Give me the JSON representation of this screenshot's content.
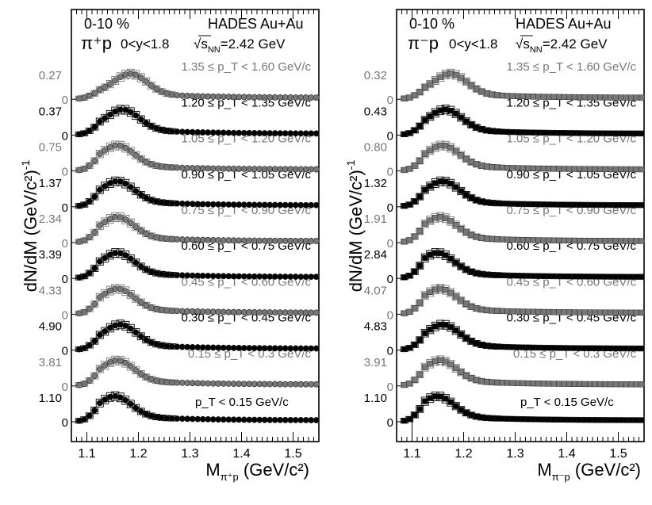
{
  "chart_data": [
    {
      "type": "scatter",
      "title": "HADES Au+Au",
      "centrality": "0-10 %",
      "system": "π⁺p",
      "rapidity": "0<y<1.8",
      "energy_prefix": "√s",
      "energy_sub": "NN",
      "energy_value": "=2.42 GeV",
      "xlabel": "M",
      "xlabel_sub": "π⁺p",
      "xlabel_unit": " (GeV/c²)",
      "ylabel": "dN/dM (GeV/c²)",
      "ylabel_exp": "-1",
      "xlim": [
        1.07,
        1.55
      ],
      "xticks": [
        "1.1",
        "1.2",
        "1.3",
        "1.4",
        "1.5"
      ],
      "series": [
        {
          "name": "p_T < 0.15 GeV/c",
          "range": "p_T < 0.15 GeV/c",
          "scale": "1.10",
          "zero": "0",
          "color": "#000000",
          "marker": "circle",
          "peak_mass": 1.155
        },
        {
          "name": "0.15 ≤ p_T < 0.3 GeV/c",
          "range": "0.15 ≤ p_T < 0.3 GeV/c",
          "scale": "3.81",
          "zero": "0",
          "color": "#777777",
          "marker": "circle",
          "peak_mass": 1.16
        },
        {
          "name": "0.30 ≤ p_T < 0.45 GeV/c",
          "range": "0.30 ≤ p_T < 0.45 GeV/c",
          "scale": "4.90",
          "zero": "0",
          "color": "#000000",
          "marker": "circle",
          "peak_mass": 1.165
        },
        {
          "name": "0.45 ≤ p_T < 0.60 GeV/c",
          "range": "0.45 ≤ p_T < 0.60 GeV/c",
          "scale": "4.33",
          "zero": "0",
          "color": "#777777",
          "marker": "circle",
          "peak_mass": 1.16
        },
        {
          "name": "0.60 ≤ p_T < 0.75 GeV/c",
          "range": "0.60 ≤ p_T < 0.75 GeV/c",
          "scale": "3.39",
          "zero": "0",
          "color": "#000000",
          "marker": "circle",
          "peak_mass": 1.16
        },
        {
          "name": "0.75 ≤ p_T < 0.90 GeV/c",
          "range": "0.75 ≤ p_T < 0.90 GeV/c",
          "scale": "2.34",
          "zero": "0",
          "color": "#777777",
          "marker": "circle",
          "peak_mass": 1.16
        },
        {
          "name": "0.90 ≤ p_T < 1.05 GeV/c",
          "range": "0.90 ≤ p_T < 1.05 GeV/c",
          "scale": "1.37",
          "zero": "0",
          "color": "#000000",
          "marker": "circle",
          "peak_mass": 1.16
        },
        {
          "name": "1.05 ≤ p_T < 1.20 GeV/c",
          "range": "1.05 ≤ p_T < 1.20 GeV/c",
          "scale": "0.75",
          "zero": "0",
          "color": "#777777",
          "marker": "circle",
          "peak_mass": 1.16
        },
        {
          "name": "1.20 ≤ p_T < 1.35 GeV/c",
          "range": "1.20 ≤ p_T < 1.35 GeV/c",
          "scale": "0.37",
          "zero": "0",
          "color": "#000000",
          "marker": "circle",
          "peak_mass": 1.17
        },
        {
          "name": "1.35 ≤ p_T < 1.60 GeV/c",
          "range": "1.35 ≤ p_T < 1.60 GeV/c",
          "scale": "0.27",
          "zero": "0",
          "color": "#777777",
          "marker": "circle",
          "peak_mass": 1.185
        }
      ]
    },
    {
      "type": "scatter",
      "title": "HADES Au+Au",
      "centrality": "0-10 %",
      "system": "π⁻p",
      "rapidity": "0<y<1.8",
      "energy_prefix": "√s",
      "energy_sub": "NN",
      "energy_value": "=2.42 GeV",
      "xlabel": "M",
      "xlabel_sub": "π⁻p",
      "xlabel_unit": " (GeV/c²)",
      "ylabel": "dN/dM (GeV/c²)",
      "ylabel_exp": "-1",
      "xlim": [
        1.07,
        1.55
      ],
      "xticks": [
        "1.1",
        "1.2",
        "1.3",
        "1.4",
        "1.5"
      ],
      "series": [
        {
          "name": "p_T < 0.15 GeV/c",
          "range": "p_T < 0.15 GeV/c",
          "scale": "1.10",
          "zero": "0",
          "color": "#000000",
          "marker": "square",
          "peak_mass": 1.15
        },
        {
          "name": "0.15 ≤ p_T < 0.3 GeV/c",
          "range": "0.15 ≤ p_T < 0.3 GeV/c",
          "scale": "3.91",
          "zero": "0",
          "color": "#777777",
          "marker": "square",
          "peak_mass": 1.155
        },
        {
          "name": "0.30 ≤ p_T < 0.45 GeV/c",
          "range": "0.30 ≤ p_T < 0.45 GeV/c",
          "scale": "4.83",
          "zero": "0",
          "color": "#000000",
          "marker": "square",
          "peak_mass": 1.16
        },
        {
          "name": "0.45 ≤ p_T < 0.60 GeV/c",
          "range": "0.45 ≤ p_T < 0.60 GeV/c",
          "scale": "4.07",
          "zero": "0",
          "color": "#777777",
          "marker": "square",
          "peak_mass": 1.155
        },
        {
          "name": "0.60 ≤ p_T < 0.75 GeV/c",
          "range": "0.60 ≤ p_T < 0.75 GeV/c",
          "scale": "2.84",
          "zero": "0",
          "color": "#000000",
          "marker": "square",
          "peak_mass": 1.15
        },
        {
          "name": "0.75 ≤ p_T < 0.90 GeV/c",
          "range": "0.75 ≤ p_T < 0.90 GeV/c",
          "scale": "1.91",
          "zero": "0",
          "color": "#777777",
          "marker": "square",
          "peak_mass": 1.155
        },
        {
          "name": "0.90 ≤ p_T < 1.05 GeV/c",
          "range": "0.90 ≤ p_T < 1.05 GeV/c",
          "scale": "1.32",
          "zero": "0",
          "color": "#000000",
          "marker": "square",
          "peak_mass": 1.16
        },
        {
          "name": "1.05 ≤ p_T < 1.20 GeV/c",
          "range": "1.05 ≤ p_T < 1.20 GeV/c",
          "scale": "0.80",
          "zero": "0",
          "color": "#777777",
          "marker": "square",
          "peak_mass": 1.16
        },
        {
          "name": "1.20 ≤ p_T < 1.35 GeV/c",
          "range": "1.20 ≤ p_T < 1.35 GeV/c",
          "scale": "0.43",
          "zero": "0",
          "color": "#000000",
          "marker": "square",
          "peak_mass": 1.165
        },
        {
          "name": "1.35 ≤ p_T < 1.60 GeV/c",
          "range": "1.35 ≤ p_T < 1.60 GeV/c",
          "scale": "0.32",
          "zero": "0",
          "color": "#777777",
          "marker": "square",
          "peak_mass": 1.175
        }
      ]
    }
  ]
}
